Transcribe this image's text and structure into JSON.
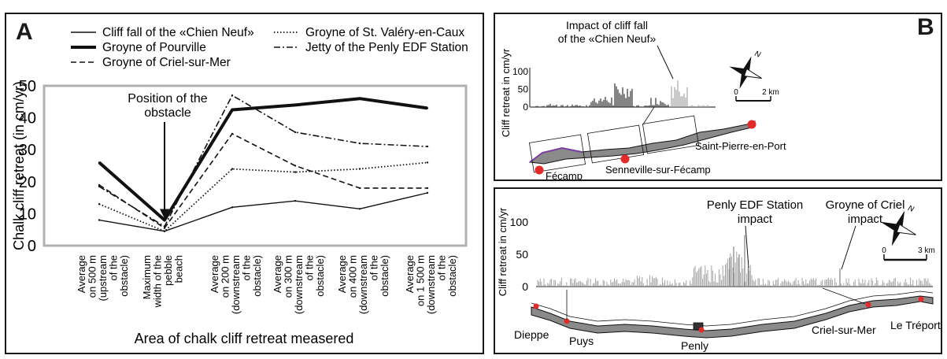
{
  "panel_a": {
    "letter": "A",
    "chart_data": {
      "type": "line",
      "categories": [
        "Average on 500 m (upstream of the obstacle)",
        "Maximum width of the pebble beach",
        "Average on 200 m (downstream of the obstacle)",
        "Average on 300 m (downstream of the obstacle)",
        "Average on 400 m (downstream of the obstacle)",
        "Average on 1 500 m (downstream of the obstacle)"
      ],
      "category_lines": [
        [
          "Average",
          "on 500 m",
          "(upstream",
          "of the",
          "obstacle)"
        ],
        [
          "Maximum",
          "width of the",
          "pebble",
          "beach"
        ],
        [
          "Average",
          "on 200 m",
          "(downstream",
          "of the",
          "obstacle)"
        ],
        [
          "Average",
          "on 300 m",
          "(downstream",
          "of the",
          "obstacle)"
        ],
        [
          "Average",
          "on 400 m",
          "(downstream",
          "of the",
          "obstacle)"
        ],
        [
          "Average",
          "on 1 500 m",
          "(downstream",
          "of the",
          "obstacle)"
        ]
      ],
      "series": [
        {
          "name": "Cliff fall of the «Chien Neuf»",
          "style": "solid-thin",
          "values": [
            8,
            4.5,
            12,
            14,
            11.5,
            16.5
          ]
        },
        {
          "name": "Groyne of Pourville",
          "style": "solid-thick",
          "values": [
            26,
            8,
            42.5,
            44,
            46,
            43
          ]
        },
        {
          "name": "Groyne of Criel-sur-Mer",
          "style": "dashed",
          "values": [
            19,
            5.5,
            35,
            25,
            18,
            18
          ]
        },
        {
          "name": "Groyne of St. Valéry-en-Caux",
          "style": "dotted",
          "values": [
            13,
            4.5,
            24,
            23,
            24,
            26
          ]
        },
        {
          "name": "Jetty of the Penly EDF Station",
          "style": "dashdot",
          "values": [
            18.5,
            6,
            47,
            35.5,
            32,
            31
          ]
        }
      ],
      "ylabel": "Chalk cliff retreat (in cm/yr)",
      "xlabel": "Area of chalk cliff retreat measered",
      "ylim": [
        0,
        50
      ],
      "yticks": [
        "0",
        "10",
        "20",
        "30",
        "40",
        "50"
      ],
      "annotation": [
        "Position of the",
        "obstacle"
      ],
      "annotation_index": 1,
      "annotation_value": 8
    }
  },
  "panel_b": {
    "letter": "B",
    "north_label": "N",
    "top": {
      "ylabel": "Cliff retreat in cm/yr",
      "yticks": [
        "0",
        "50",
        "100"
      ],
      "impact_label": [
        "Impact of cliff fall",
        "of the «Chien Neuf»"
      ],
      "scale_start": "0",
      "scale_end": "2 km",
      "places": [
        "Fécamp",
        "Senneville-sur-Fécamp",
        "Saint-Pierre-en-Port"
      ]
    },
    "bottom": {
      "ylabel": "Cliff retreat in cm/yr",
      "yticks": [
        "0",
        "50",
        "100"
      ],
      "impact_labels": [
        [
          "Penly EDF Station",
          "impact"
        ],
        [
          "Groyne of Criel",
          "impact"
        ]
      ],
      "scale_start": "0",
      "scale_end": "3 km",
      "places": [
        "Dieppe",
        "Puys",
        "Penly",
        "Criel-sur-Mer",
        "Le Tréport"
      ]
    }
  },
  "colors": {
    "frame": "#1a1a1a",
    "plot_border": "#b0b0b0",
    "bars_dark": "#333333",
    "bars_light": "#a6a6a6",
    "site_dot": "#e32b2b",
    "coast_fill": "#8a8a8a"
  }
}
